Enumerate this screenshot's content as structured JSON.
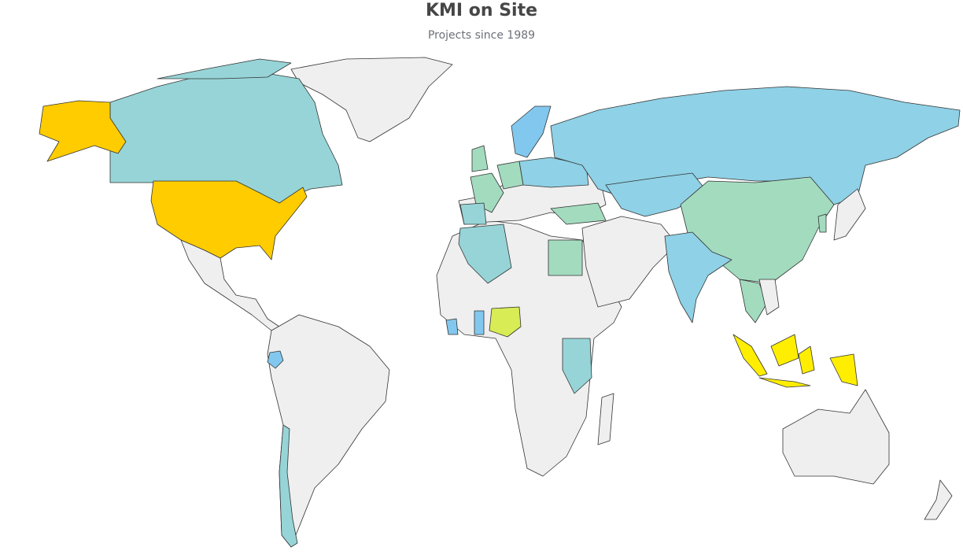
{
  "header": {
    "title": "KMI on Site",
    "subtitle": "Projects since 1989"
  }
}
